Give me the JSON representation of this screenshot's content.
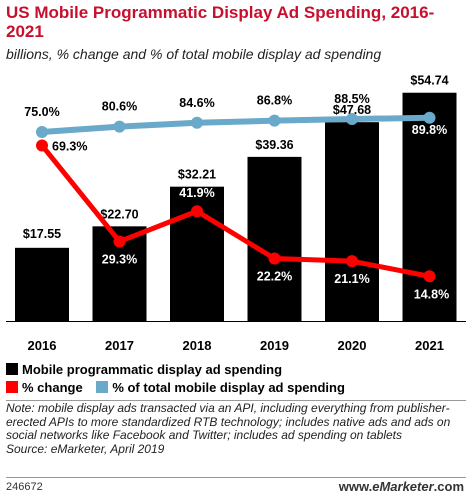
{
  "title": "US Mobile Programmatic Display Ad Spending, 2016-2021",
  "subtitle": "billions, % change and % of total mobile display ad spending",
  "chart_data": {
    "type": "bar",
    "categories": [
      "2016",
      "2017",
      "2018",
      "2019",
      "2020",
      "2021"
    ],
    "series": [
      {
        "name": "Mobile programmatic display ad spending",
        "kind": "bar",
        "values": [
          17.55,
          22.7,
          32.21,
          39.36,
          47.68,
          54.74
        ],
        "labels": [
          "$17.55",
          "$22.70",
          "$32.21",
          "$39.36",
          "$47.68",
          "$54.74"
        ],
        "color": "#000000"
      },
      {
        "name": "% change",
        "kind": "line",
        "values": [
          69.3,
          29.3,
          41.9,
          22.2,
          21.1,
          14.8
        ],
        "labels": [
          "69.3%",
          "29.3%",
          "41.9%",
          "22.2%",
          "21.1%",
          "14.8%"
        ],
        "color": "#ff0000"
      },
      {
        "name": "% of total mobile display ad spending",
        "kind": "line",
        "values": [
          75.0,
          80.6,
          84.6,
          86.8,
          88.5,
          89.8
        ],
        "labels": [
          "75.0%",
          "80.6%",
          "84.6%",
          "86.8%",
          "88.5%",
          "89.8%"
        ],
        "color": "#6aa9c9"
      }
    ],
    "legend": "bottom"
  },
  "legend": {
    "items": [
      {
        "label": "Mobile programmatic display ad spending",
        "color": "#000000"
      },
      {
        "label": "% change",
        "color": "#ff0000"
      },
      {
        "label": "% of total mobile display ad spending",
        "color": "#6aa9c9"
      }
    ]
  },
  "note": "Note: mobile display ads transacted via an API, including everything from publisher-erected APIs to more standardized RTB technology; includes native ads and ads on social networks like Facebook and Twitter; includes ad spending on tablets",
  "source": "Source: eMarketer, April 2019",
  "footer": {
    "id": "246672",
    "brand_prefix": "www.",
    "brand_name": "eMarketer",
    "brand_suffix": ".com"
  }
}
